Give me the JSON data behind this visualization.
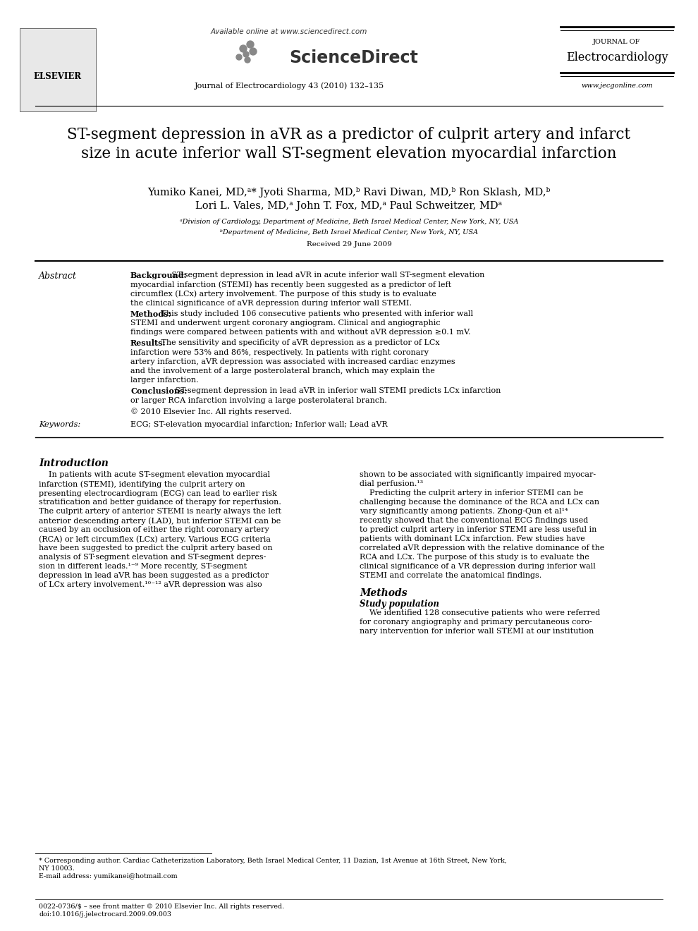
{
  "bg_color": "#ffffff",
  "header": {
    "available_online": "Available online at www.sciencedirect.com",
    "journal_line": "Journal of Electrocardiology 43 (2010) 132–135",
    "elsevier_text": "ELSEVIER",
    "journal_of": "JOURNAL OF",
    "journal_name": "Electrocardiology",
    "website": "www.jecgonline.com"
  },
  "title_line1": "ST-segment depression in aVR as a predictor of culprit artery and infarct",
  "title_line2": "size in acute inferior wall ST-segment elevation myocardial infarction",
  "authors_line1": "Yumiko Kanei, MD,ᵃ* Jyoti Sharma, MD,ᵇ Ravi Diwan, MD,ᵇ Ron Sklash, MD,ᵇ",
  "authors_line2": "Lori L. Vales, MD,ᵃ John T. Fox, MD,ᵃ Paul Schweitzer, MDᵃ",
  "affiliation_a": "ᵃDivision of Cardiology, Department of Medicine, Beth Israel Medical Center, New York, NY, USA",
  "affiliation_b": "ᵇDepartment of Medicine, Beth Israel Medical Center, New York, NY, USA",
  "received": "Received 29 June 2009",
  "abstract_label": "Abstract",
  "abstract_background_label": "Background:",
  "abstract_background": "ST-segment depression in lead aVR in acute inferior wall ST-segment elevation myocardial infarction (STEMI) has recently been suggested as a predictor of left circumflex (LCx) artery involvement. The purpose of this study is to evaluate the clinical significance of aVR depression during inferior wall STEMI.",
  "abstract_methods_label": "Methods:",
  "abstract_methods": "This study included 106 consecutive patients who presented with inferior wall STEMI and underwent urgent coronary angiogram. Clinical and angiographic findings were compared between patients with and without aVR depression ≥0.1 mV.",
  "abstract_results_label": "Results:",
  "abstract_results": "The sensitivity and specificity of aVR depression as a predictor of LCx infarction were 53% and 86%, respectively. In patients with right coronary artery infarction, aVR depression was associated with increased cardiac enzymes and the involvement of a large posterolateral branch, which may explain the larger infarction.",
  "abstract_conclusions_label": "Conclusions:",
  "abstract_conclusions": "ST-segment depression in lead aVR in inferior wall STEMI predicts LCx infarction or larger RCA infarction involving a large posterolateral branch.",
  "abstract_copyright": "© 2010 Elsevier Inc. All rights reserved.",
  "keywords_label": "Keywords:",
  "keywords": "ECG; ST-elevation myocardial infarction; Inferior wall; Lead aVR",
  "intro_heading": "Introduction",
  "intro_col1_lines": [
    "    In patients with acute ST-segment elevation myocardial",
    "infarction (STEMI), identifying the culprit artery on",
    "presenting electrocardiogram (ECG) can lead to earlier risk",
    "stratification and better guidance of therapy for reperfusion.",
    "The culprit artery of anterior STEMI is nearly always the left",
    "anterior descending artery (LAD), but inferior STEMI can be",
    "caused by an occlusion of either the right coronary artery",
    "(RCA) or left circumflex (LCx) artery. Various ECG criteria",
    "have been suggested to predict the culprit artery based on",
    "analysis of ST-segment elevation and ST-segment depres-",
    "sion in different leads.¹⁻⁹ More recently, ST-segment",
    "depression in lead aVR has been suggested as a predictor",
    "of LCx artery involvement.¹⁰⁻¹² aVR depression was also"
  ],
  "intro_col2_lines": [
    "shown to be associated with significantly impaired myocar-",
    "dial perfusion.¹³",
    "    Predicting the culprit artery in inferior STEMI can be",
    "challenging because the dominance of the RCA and LCx can",
    "vary significantly among patients. Zhong-Qun et al¹⁴",
    "recently showed that the conventional ECG findings used",
    "to predict culprit artery in inferior STEMI are less useful in",
    "patients with dominant LCx infarction. Few studies have",
    "correlated aVR depression with the relative dominance of the",
    "RCA and LCx. The purpose of this study is to evaluate the",
    "clinical significance of a VR depression during inferior wall",
    "STEMI and correlate the anatomical findings."
  ],
  "methods_heading": "Methods",
  "study_pop_heading": "Study population",
  "study_pop_lines": [
    "    We identified 128 consecutive patients who were referred",
    "for coronary angiography and primary percutaneous coro-",
    "nary intervention for inferior wall STEMI at our institution"
  ],
  "footnote_star": "* Corresponding author. Cardiac Catheterization Laboratory, Beth Israel Medical Center, 11 Dazian, 1st Avenue at 16th Street, New York,",
  "footnote_star2": "NY 10003.",
  "footnote_email": "E-mail address: yumikanei@hotmail.com",
  "footnote_issn": "0022-0736/$ – see front matter © 2010 Elsevier Inc. All rights reserved.",
  "footnote_doi": "doi:10.1016/j.jelectrocard.2009.09.003"
}
